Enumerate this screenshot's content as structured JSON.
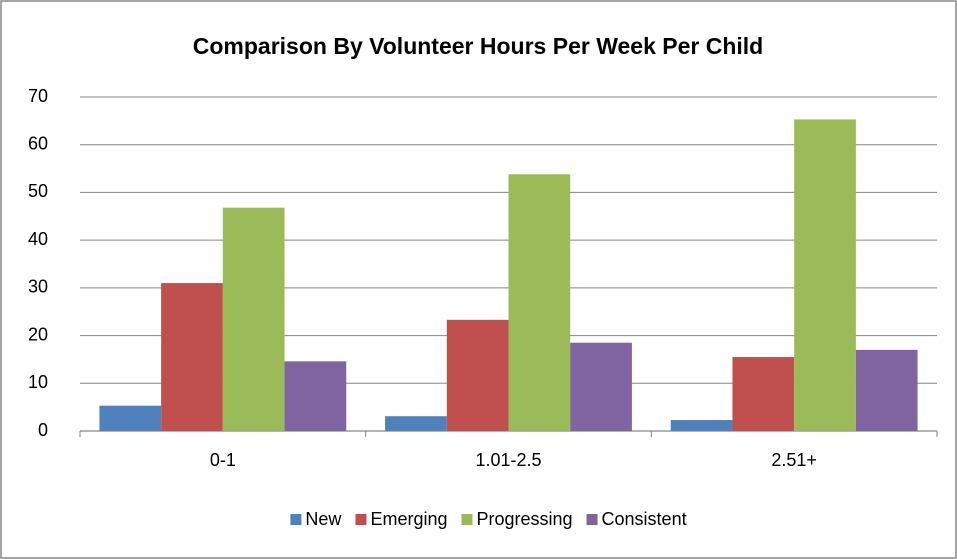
{
  "chart_data": {
    "type": "bar",
    "title": "Comparison By Volunteer Hours Per Week Per Child",
    "categories": [
      "0-1",
      "1.01-2.5",
      "2.51+"
    ],
    "series": [
      {
        "name": "New",
        "color": "#4f81bd",
        "values": [
          5.3,
          3.1,
          2.3
        ]
      },
      {
        "name": "Emerging",
        "color": "#c0504d",
        "values": [
          31,
          23.3,
          15.5
        ]
      },
      {
        "name": "Progressing",
        "color": "#9bbb59",
        "values": [
          46.8,
          53.8,
          65.3
        ]
      },
      {
        "name": "Consistent",
        "color": "#8064a2",
        "values": [
          14.6,
          18.5,
          17
        ]
      }
    ],
    "ylim": [
      0,
      70
    ],
    "yticks": [
      0,
      10,
      20,
      30,
      40,
      50,
      60,
      70
    ],
    "grid": true,
    "legend": "bottom"
  }
}
